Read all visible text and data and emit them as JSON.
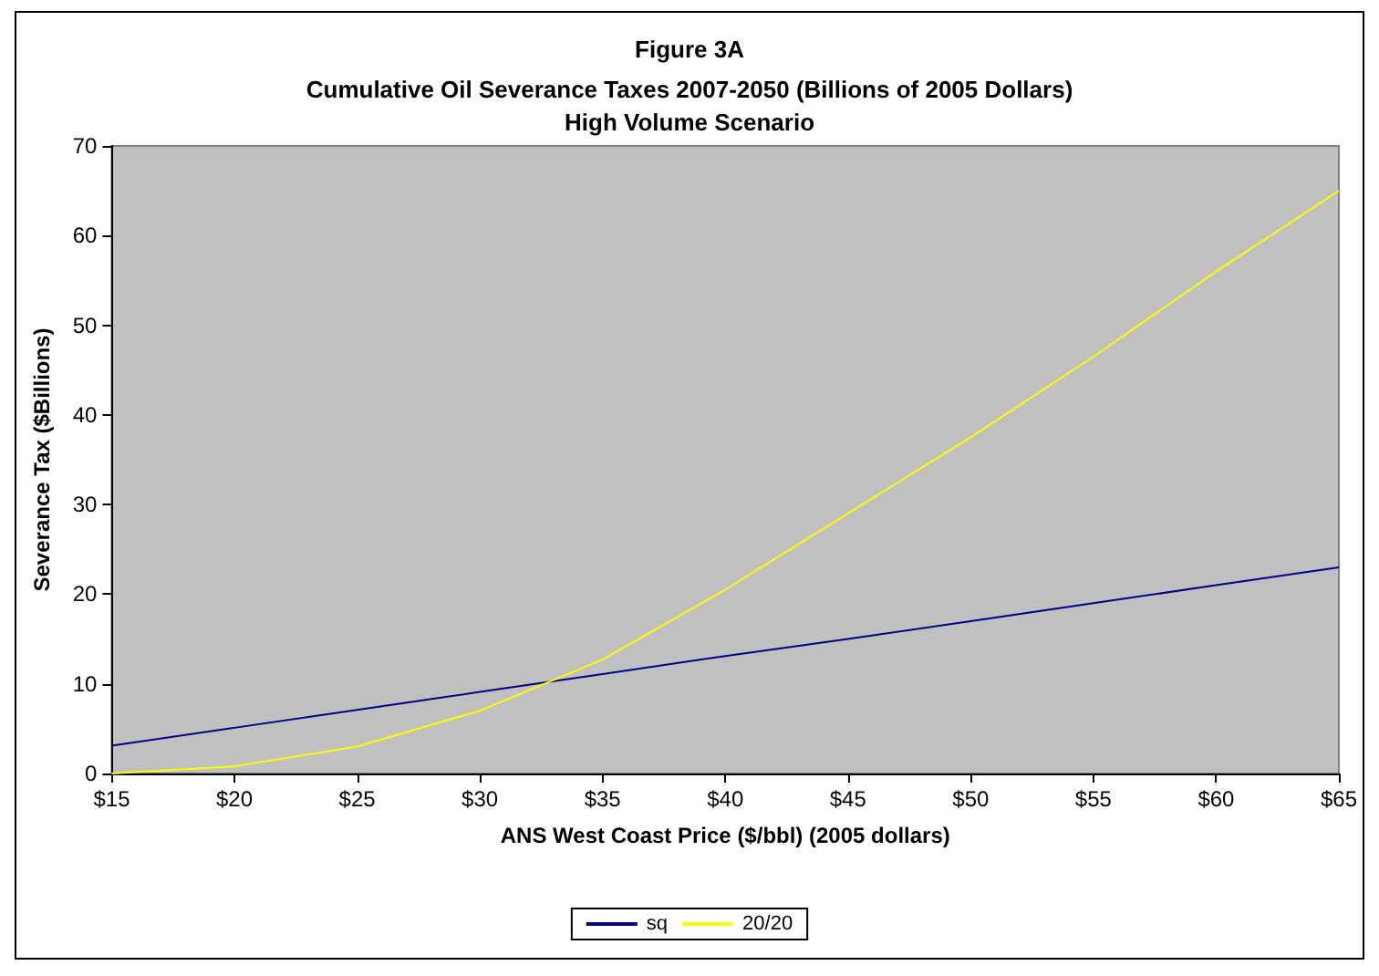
{
  "chart_data": {
    "type": "line",
    "title": "Figure 3A",
    "subtitle": "Cumulative Oil Severance Taxes 2007-2050 (Billions of 2005 Dollars)\nHigh Volume Scenario",
    "xlabel": "ANS West Coast Price ($/bbl) (2005 dollars)",
    "ylabel": "Severance Tax ($Billions)",
    "x": [
      15,
      20,
      25,
      30,
      35,
      40,
      45,
      50,
      55,
      60,
      65
    ],
    "series": [
      {
        "name": "sq",
        "color": "#000080",
        "values": [
          3.1,
          5.1,
          7.1,
          9.1,
          11.1,
          13.1,
          15,
          17,
          19,
          21,
          23
        ]
      },
      {
        "name": "20/20",
        "color": "#ffff00",
        "values": [
          0,
          0.8,
          3,
          7,
          12.7,
          20.5,
          29,
          37.5,
          46.5,
          56,
          65
        ]
      }
    ],
    "xlim": [
      15,
      65
    ],
    "xticks": [
      {
        "value": 15,
        "label": "$15"
      },
      {
        "value": 20,
        "label": "$20"
      },
      {
        "value": 25,
        "label": "$25"
      },
      {
        "value": 30,
        "label": "$30"
      },
      {
        "value": 35,
        "label": "$35"
      },
      {
        "value": 40,
        "label": "$40"
      },
      {
        "value": 45,
        "label": "$45"
      },
      {
        "value": 50,
        "label": "$50"
      },
      {
        "value": 55,
        "label": "$55"
      },
      {
        "value": 60,
        "label": "$60"
      },
      {
        "value": 65,
        "label": "$65"
      }
    ],
    "ylim": [
      0,
      70
    ],
    "yticks": [
      0,
      10,
      20,
      30,
      40,
      50,
      60,
      70
    ],
    "grid": false,
    "legend": "bottom",
    "marker": "none",
    "line_style": "solid"
  }
}
